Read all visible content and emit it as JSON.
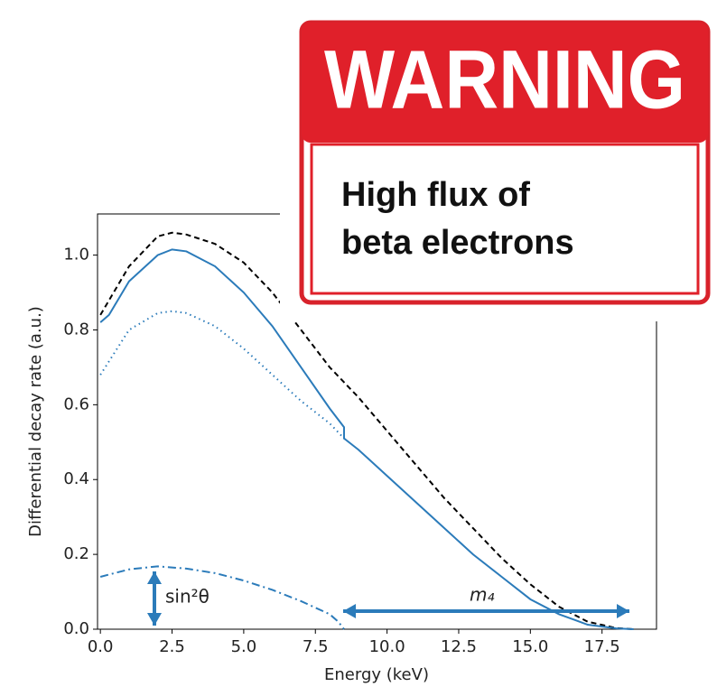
{
  "chart_data": {
    "type": "line",
    "xlabel": "Energy (keV)",
    "ylabel": "Differential decay rate (a.u.)",
    "xlim": [
      -0.1,
      19.4
    ],
    "ylim": [
      0,
      1.11
    ],
    "xticks": [
      {
        "value": 0,
        "label": "0.0"
      },
      {
        "value": 2.5,
        "label": "2.5"
      },
      {
        "value": 5,
        "label": "5.0"
      },
      {
        "value": 7.5,
        "label": "7.5"
      },
      {
        "value": 10,
        "label": "10.0"
      },
      {
        "value": 12.5,
        "label": "12.5"
      },
      {
        "value": 15,
        "label": "15.0"
      },
      {
        "value": 17.5,
        "label": "17.5"
      }
    ],
    "yticks": [
      {
        "value": 0,
        "label": "0.0"
      },
      {
        "value": 0.2,
        "label": "0.2"
      },
      {
        "value": 0.4,
        "label": "0.4"
      },
      {
        "value": 0.6,
        "label": "0.6"
      },
      {
        "value": 0.8,
        "label": "0.8"
      },
      {
        "value": 1,
        "label": "1.0"
      }
    ],
    "series": [
      {
        "color": "#000000",
        "dash": "6,4",
        "x": [
          0,
          1,
          2,
          2.5,
          3,
          4,
          5,
          6,
          7,
          7.5,
          8,
          8.5,
          9,
          10,
          11,
          12,
          13,
          14,
          15,
          16,
          17,
          18,
          18.6
        ],
        "values": [
          0.84,
          0.97,
          1.05,
          1.06,
          1.055,
          1.03,
          0.98,
          0.9,
          0.8,
          0.75,
          0.7,
          0.66,
          0.62,
          0.53,
          0.44,
          0.35,
          0.27,
          0.19,
          0.12,
          0.06,
          0.02,
          0.003,
          0
        ]
      },
      {
        "color": "#2b7bba",
        "dash": "",
        "x": [
          0,
          0.3,
          1,
          2,
          2.5,
          3,
          4,
          5,
          6,
          7,
          8,
          8.5,
          8.5,
          9,
          10,
          11,
          12,
          13,
          14,
          15,
          16,
          17,
          18,
          18.6
        ],
        "values": [
          0.82,
          0.84,
          0.93,
          1.0,
          1.015,
          1.01,
          0.97,
          0.9,
          0.81,
          0.7,
          0.59,
          0.54,
          0.51,
          0.48,
          0.41,
          0.34,
          0.27,
          0.2,
          0.14,
          0.08,
          0.04,
          0.012,
          0.002,
          0
        ]
      },
      {
        "color": "#2b7bba",
        "dash": "1.5,4",
        "x": [
          0,
          1,
          2,
          2.5,
          3,
          4,
          5,
          6,
          7,
          8,
          8.5
        ],
        "values": [
          0.68,
          0.8,
          0.845,
          0.85,
          0.845,
          0.81,
          0.75,
          0.68,
          0.61,
          0.55,
          0.51
        ]
      },
      {
        "color": "#2b7bba",
        "dash": "9,4,2,4",
        "x": [
          0,
          1,
          2,
          3,
          4,
          5,
          6,
          7,
          8,
          8.3,
          8.5
        ],
        "values": [
          0.14,
          0.16,
          0.168,
          0.162,
          0.15,
          0.13,
          0.105,
          0.075,
          0.04,
          0.02,
          0
        ]
      }
    ],
    "annotations": [
      "sin²θ",
      "m₄"
    ]
  },
  "overlay": {
    "title": "WARNING",
    "lines": [
      "High flux of",
      "beta electrons"
    ]
  }
}
